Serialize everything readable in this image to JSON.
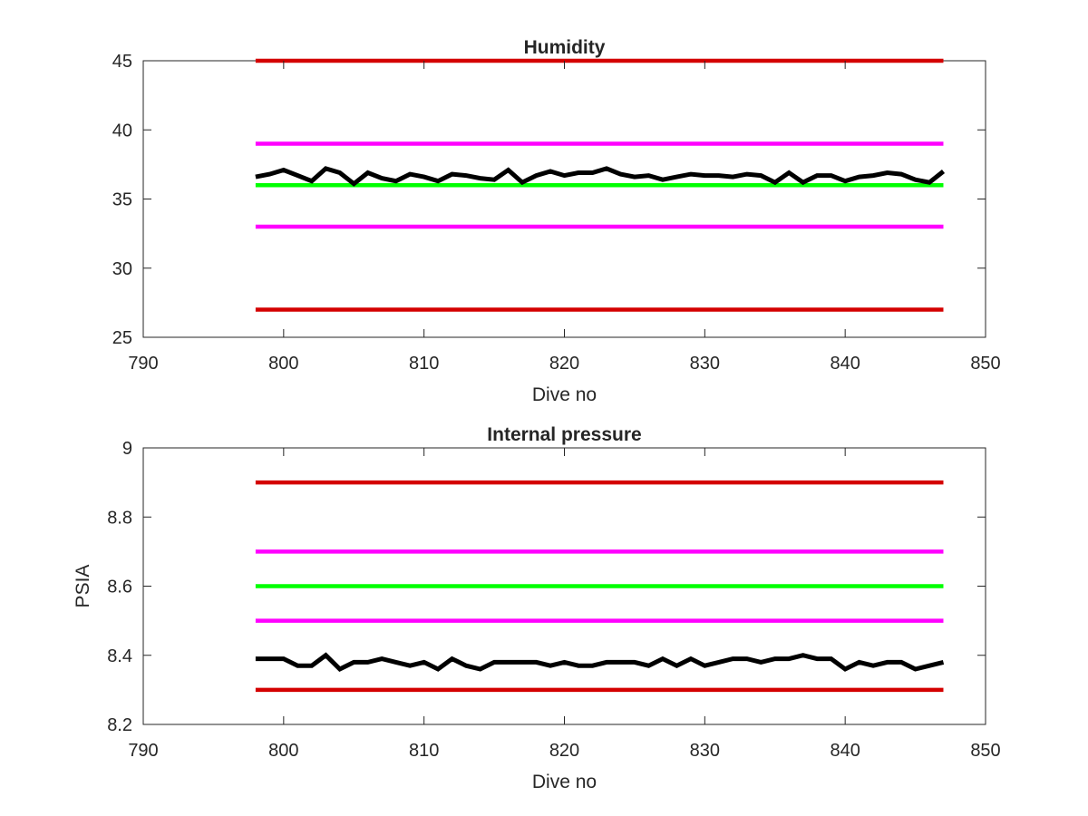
{
  "chart_data": [
    {
      "type": "line",
      "title": "Humidity",
      "xlabel": "Dive no",
      "ylabel": "",
      "xlim": [
        790,
        850
      ],
      "ylim": [
        25,
        45
      ],
      "xticks": [
        790,
        800,
        810,
        820,
        830,
        840,
        850
      ],
      "yticks": [
        25,
        30,
        35,
        40,
        45
      ],
      "grid": false,
      "series": [
        {
          "color": "#d40000",
          "x": [
            798,
            847
          ],
          "y": [
            45,
            45
          ]
        },
        {
          "color": "#ff00ff",
          "x": [
            798,
            847
          ],
          "y": [
            39,
            39
          ]
        },
        {
          "color": "#00ff00",
          "x": [
            798,
            847
          ],
          "y": [
            36,
            36
          ]
        },
        {
          "color": "#ff00ff",
          "x": [
            798,
            847
          ],
          "y": [
            33,
            33
          ]
        },
        {
          "color": "#d40000",
          "x": [
            798,
            847
          ],
          "y": [
            27,
            27
          ]
        },
        {
          "color": "#000000",
          "x": [
            798,
            799,
            800,
            801,
            802,
            803,
            804,
            805,
            806,
            807,
            808,
            809,
            810,
            811,
            812,
            813,
            814,
            815,
            816,
            817,
            818,
            819,
            820,
            821,
            822,
            823,
            824,
            825,
            826,
            827,
            828,
            829,
            830,
            831,
            832,
            833,
            834,
            835,
            836,
            837,
            838,
            839,
            840,
            841,
            842,
            843,
            844,
            845,
            846,
            847
          ],
          "y": [
            36.6,
            36.8,
            37.1,
            36.7,
            36.3,
            37.2,
            36.9,
            36.1,
            36.9,
            36.5,
            36.3,
            36.8,
            36.6,
            36.3,
            36.8,
            36.7,
            36.5,
            36.4,
            37.1,
            36.2,
            36.7,
            37.0,
            36.7,
            36.9,
            36.9,
            37.2,
            36.8,
            36.6,
            36.7,
            36.4,
            36.6,
            36.8,
            36.7,
            36.7,
            36.6,
            36.8,
            36.7,
            36.2,
            36.9,
            36.2,
            36.7,
            36.7,
            36.3,
            36.6,
            36.7,
            36.9,
            36.8,
            36.4,
            36.2,
            37.0
          ]
        }
      ]
    },
    {
      "type": "line",
      "title": "Internal pressure",
      "xlabel": "Dive no",
      "ylabel": "PSIA",
      "xlim": [
        790,
        850
      ],
      "ylim": [
        8.2,
        9
      ],
      "xticks": [
        790,
        800,
        810,
        820,
        830,
        840,
        850
      ],
      "yticks": [
        8.2,
        8.4,
        8.6,
        8.8,
        9
      ],
      "grid": false,
      "series": [
        {
          "color": "#d40000",
          "x": [
            798,
            847
          ],
          "y": [
            8.9,
            8.9
          ]
        },
        {
          "color": "#ff00ff",
          "x": [
            798,
            847
          ],
          "y": [
            8.7,
            8.7
          ]
        },
        {
          "color": "#00ff00",
          "x": [
            798,
            847
          ],
          "y": [
            8.6,
            8.6
          ]
        },
        {
          "color": "#ff00ff",
          "x": [
            798,
            847
          ],
          "y": [
            8.5,
            8.5
          ]
        },
        {
          "color": "#d40000",
          "x": [
            798,
            847
          ],
          "y": [
            8.3,
            8.3
          ]
        },
        {
          "color": "#000000",
          "x": [
            798,
            799,
            800,
            801,
            802,
            803,
            804,
            805,
            806,
            807,
            808,
            809,
            810,
            811,
            812,
            813,
            814,
            815,
            816,
            817,
            818,
            819,
            820,
            821,
            822,
            823,
            824,
            825,
            826,
            827,
            828,
            829,
            830,
            831,
            832,
            833,
            834,
            835,
            836,
            837,
            838,
            839,
            840,
            841,
            842,
            843,
            844,
            845,
            846,
            847
          ],
          "y": [
            8.39,
            8.39,
            8.39,
            8.37,
            8.37,
            8.4,
            8.36,
            8.38,
            8.38,
            8.39,
            8.38,
            8.37,
            8.38,
            8.36,
            8.39,
            8.37,
            8.36,
            8.38,
            8.38,
            8.38,
            8.38,
            8.37,
            8.38,
            8.37,
            8.37,
            8.38,
            8.38,
            8.38,
            8.37,
            8.39,
            8.37,
            8.39,
            8.37,
            8.38,
            8.39,
            8.39,
            8.38,
            8.39,
            8.39,
            8.4,
            8.39,
            8.39,
            8.36,
            8.38,
            8.37,
            8.38,
            8.38,
            8.36,
            8.37,
            8.38
          ]
        }
      ]
    }
  ]
}
